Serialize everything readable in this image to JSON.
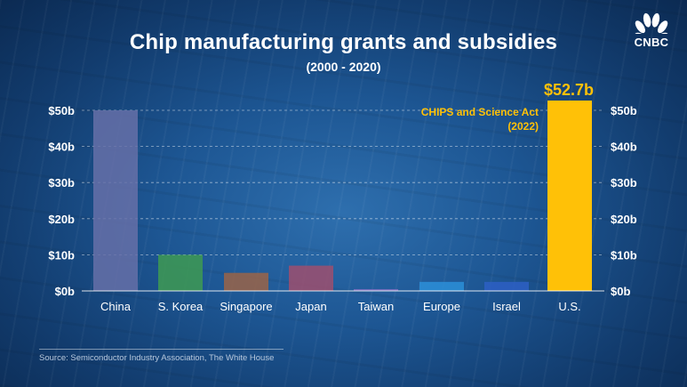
{
  "branding": {
    "logo_text": "CNBC",
    "logo_icon": "peacock-icon"
  },
  "chart_data": {
    "type": "bar",
    "title": "Chip manufacturing grants and subsidies",
    "subtitle": "(2000 - 2020)",
    "categories": [
      "China",
      "S. Korea",
      "Singapore",
      "Japan",
      "Taiwan",
      "Europe",
      "Israel",
      "U.S."
    ],
    "values": [
      50,
      10,
      5,
      7,
      0.5,
      2.5,
      2.5,
      52.7
    ],
    "colors": [
      "#6670a8",
      "#3e9a52",
      "#9a6448",
      "#9e4f6e",
      "#7f6fc0",
      "#2b8fd8",
      "#2d5fc4",
      "#ffc107"
    ],
    "ylim": [
      0,
      50
    ],
    "yticks": [
      0,
      10,
      20,
      30,
      40,
      50
    ],
    "ytick_labels": [
      "$0b",
      "$10b",
      "$20b",
      "$30b",
      "$40b",
      "$50b"
    ],
    "grid": true,
    "highlight": {
      "category": "U.S.",
      "value_label": "$52.7b",
      "annotation_line1": "CHIPS and Science Act",
      "annotation_line2": "(2022)"
    }
  },
  "source": "Source: Semiconductor Industry Association, The White House"
}
